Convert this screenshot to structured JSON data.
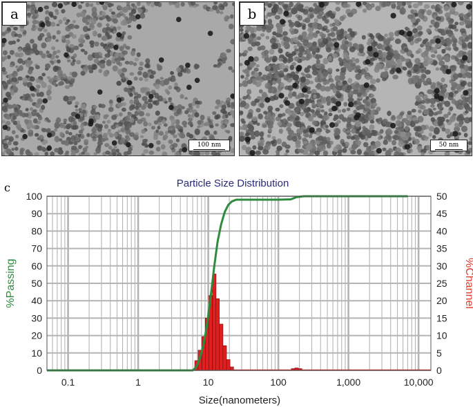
{
  "panels": {
    "a": {
      "letter": "a",
      "scale_label": "100 nm"
    },
    "b": {
      "letter": "b",
      "scale_label": "50 nm"
    },
    "c": {
      "letter": "c"
    }
  },
  "chart_data": {
    "type": "bar",
    "title": "Particle Size Distribution",
    "xlabel": "Size(nanometers)",
    "ylabel_left": "%Passing",
    "ylabel_right": "%Channel",
    "xscale": "log",
    "xlim": [
      0.05,
      15000
    ],
    "ylim_left": [
      0,
      100
    ],
    "ylim_right": [
      0,
      50
    ],
    "x_ticks": [
      {
        "value": 0.1,
        "label": "0.1"
      },
      {
        "value": 1,
        "label": "1"
      },
      {
        "value": 10,
        "label": "10"
      },
      {
        "value": 100,
        "label": "100"
      },
      {
        "value": 1000,
        "label": "1,000"
      },
      {
        "value": 10000,
        "label": "10,000"
      }
    ],
    "y_left_ticks": [
      "0",
      "10",
      "20",
      "30",
      "40",
      "50",
      "60",
      "70",
      "80",
      "90",
      "100"
    ],
    "y_right_ticks": [
      "0",
      "5",
      "10",
      "15",
      "20",
      "25",
      "30",
      "35",
      "40",
      "45",
      "50"
    ],
    "grid": true,
    "colors": {
      "passing": "#2e8b3e",
      "channel": "#e02020",
      "title": "#2a2a7a",
      "grid": "#b4b4b4"
    },
    "channel_series": {
      "name": "%Channel",
      "bars": [
        {
          "x": 6.8,
          "y": 2.8
        },
        {
          "x": 7.6,
          "y": 5.8
        },
        {
          "x": 8.6,
          "y": 9.7
        },
        {
          "x": 9.6,
          "y": 15.0
        },
        {
          "x": 10.8,
          "y": 21.5
        },
        {
          "x": 12.2,
          "y": 27.7
        },
        {
          "x": 13.6,
          "y": 20.6
        },
        {
          "x": 15.3,
          "y": 13.3
        },
        {
          "x": 17.2,
          "y": 7.1
        },
        {
          "x": 19.3,
          "y": 3.1
        },
        {
          "x": 21.7,
          "y": 1.0
        },
        {
          "x": 162,
          "y": 0.5
        },
        {
          "x": 182,
          "y": 0.7
        },
        {
          "x": 205,
          "y": 0.5
        }
      ]
    },
    "passing_series": {
      "name": "%Passing",
      "points": [
        [
          0.05,
          0
        ],
        [
          6.0,
          0
        ],
        [
          6.8,
          2
        ],
        [
          7.6,
          7
        ],
        [
          8.6,
          15
        ],
        [
          9.6,
          26
        ],
        [
          10.8,
          42
        ],
        [
          12.2,
          60
        ],
        [
          13.6,
          74
        ],
        [
          15.3,
          84
        ],
        [
          17.2,
          91
        ],
        [
          19.3,
          95
        ],
        [
          21.7,
          97
        ],
        [
          25,
          98
        ],
        [
          40,
          98
        ],
        [
          100,
          98
        ],
        [
          150,
          98.2
        ],
        [
          182,
          99.5
        ],
        [
          230,
          100
        ],
        [
          7000,
          100
        ]
      ]
    }
  }
}
